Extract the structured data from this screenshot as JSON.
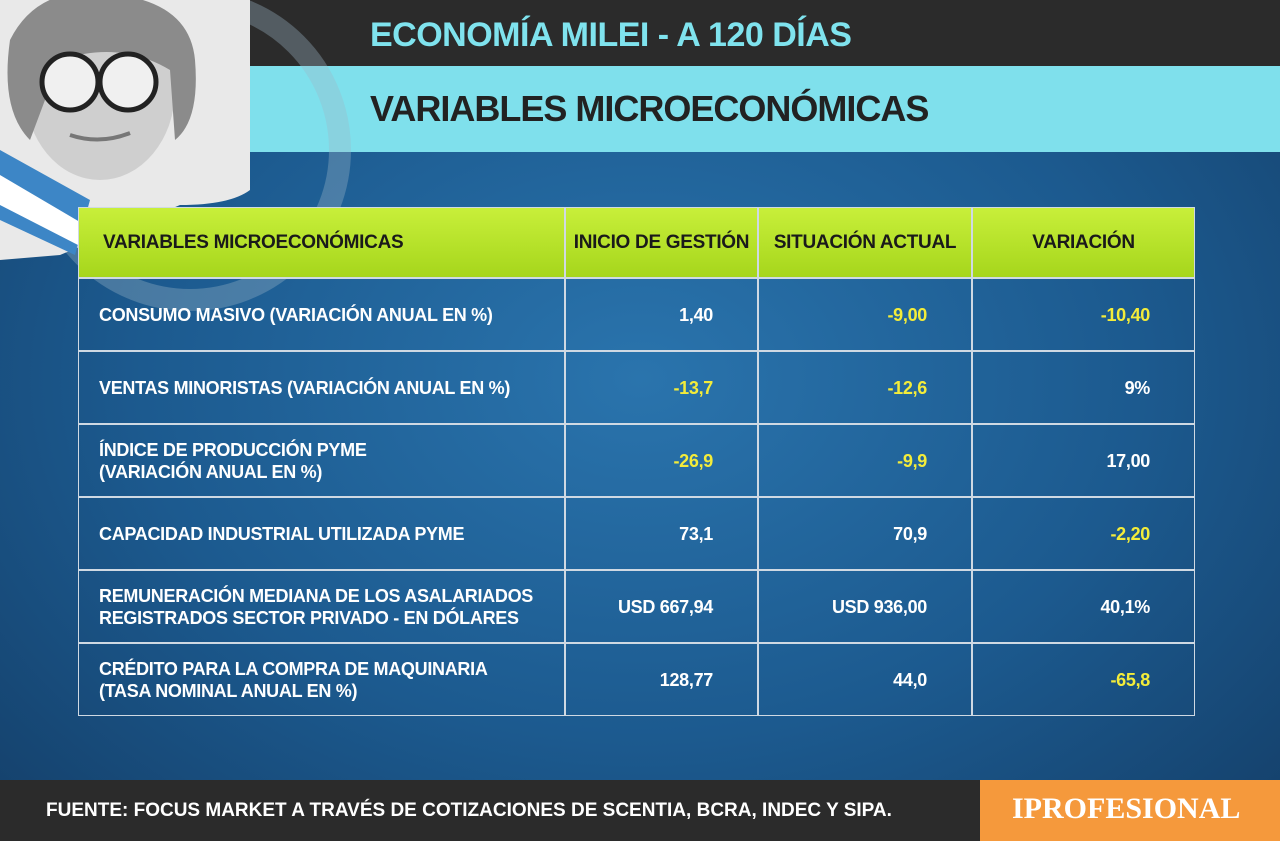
{
  "header": {
    "title": "ECONOMÍA MILEI - A 120 DÍAS",
    "subtitle": "VARIABLES MICROECONÓMICAS"
  },
  "table": {
    "columns": [
      "VARIABLES MICROECONÓMICAS",
      "INICIO DE GESTIÓN",
      "SITUACIÓN ACTUAL",
      "VARIACIÓN"
    ],
    "rows": [
      [
        "CONSUMO MASIVO (VARIACIÓN ANUAL EN %)",
        "1,40",
        "-9,00",
        "-10,40"
      ],
      [
        "VENTAS MINORISTAS (VARIACIÓN ANUAL EN %)",
        "-13,7",
        "-12,6",
        "9%"
      ],
      [
        "ÍNDICE DE PRODUCCIÓN PYME\n(VARIACIÓN ANUAL EN %)",
        "-26,9",
        "-9,9",
        "17,00"
      ],
      [
        "CAPACIDAD INDUSTRIAL UTILIZADA PYME",
        "73,1",
        "70,9",
        "-2,20"
      ],
      [
        "REMUNERACIÓN MEDIANA DE LOS ASALARIADOS\nREGISTRADOS SECTOR PRIVADO - EN DÓLARES",
        "USD 667,94",
        "USD 936,00",
        "40,1%"
      ],
      [
        "CRÉDITO PARA LA COMPRA DE MAQUINARIA\n(TASA NOMINAL ANUAL EN %)",
        "128,77",
        "44,0",
        "-65,8"
      ]
    ]
  },
  "footer": {
    "source": "FUENTE: FOCUS MARKET A TRAVÉS DE COTIZACIONES DE SCENTIA, BCRA, INDEC Y SIPA.",
    "brand": "IPROFESIONAL"
  }
}
